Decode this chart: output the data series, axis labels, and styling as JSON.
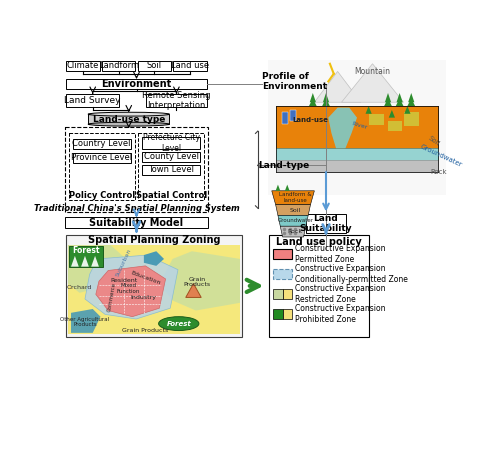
{
  "bg_color": "#ffffff",
  "top_boxes": [
    "Climate",
    "Landform",
    "Soil",
    "Land use"
  ],
  "env_box": "Environment",
  "profile_label": "Profile of\nEnvironment",
  "land_survey_box": "Land Survey",
  "remote_sensing_box": "Remote Sensing\nInterpretation",
  "land_use_type_box": "Land-use type",
  "land_type_label": "Land-type",
  "policy_boxes": [
    "Country Level",
    "Province Level"
  ],
  "policy_label": "Policy Control",
  "spatial_boxes": [
    "Prefecture City\nLevel",
    "County Level",
    "Town Level"
  ],
  "spatial_label": "Spatial Control",
  "outer_dashed_label": "Traditional China's Spatial Planning System",
  "suitability_model_box": "Suitability Model",
  "land_suitability_box": "Land\nSuitability",
  "spatial_planning_title": "Spatial Planning Zoning",
  "land_policy_title": "Land use policy",
  "zone_labels": [
    "Constructive Expansion\nPermitted Zone",
    "Constructive Expansion\nConditionally-permitted Zone",
    "Constructive Expansion\nRestricted Zone",
    "Constructive Expansion\nProhibited Zone"
  ],
  "zone_colors": [
    "#f08080",
    "#b8d8ea",
    "#c8d8a0",
    "#228b22"
  ],
  "arrow_color": "#5b9bd5",
  "green_arrow_color": "#2d8c2d",
  "terrain_colors": {
    "orange_land": "#e8820a",
    "blue_water": "#7ecac8",
    "gray_rock": "#b0b0b0",
    "light_gray": "#d8d8d8",
    "white_mountain": "#f0f0f0",
    "building_blue": "#4070c0",
    "forest_green": "#2d8c2d",
    "sky_blue": "#cce8f4"
  }
}
